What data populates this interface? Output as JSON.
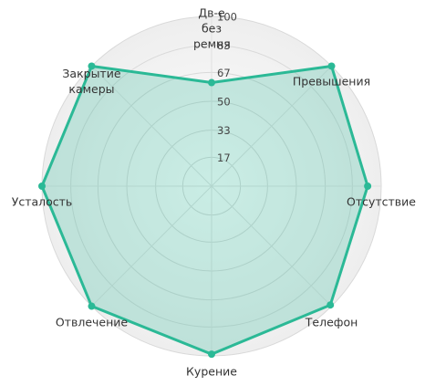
{
  "chart_data": {
    "type": "radar",
    "categories": [
      "Дв-е без ремня",
      "Превышения",
      "Отсутствие",
      "Телефон",
      "Курение",
      "Отвлечение",
      "Усталость",
      "Закрытие камеры"
    ],
    "values": [
      61,
      100,
      92,
      99,
      99,
      100,
      100,
      100
    ],
    "color": "#2bb996",
    "ylim": [
      0,
      100
    ],
    "yticks": [
      17,
      33,
      50,
      67,
      83,
      100
    ],
    "grid": true
  }
}
